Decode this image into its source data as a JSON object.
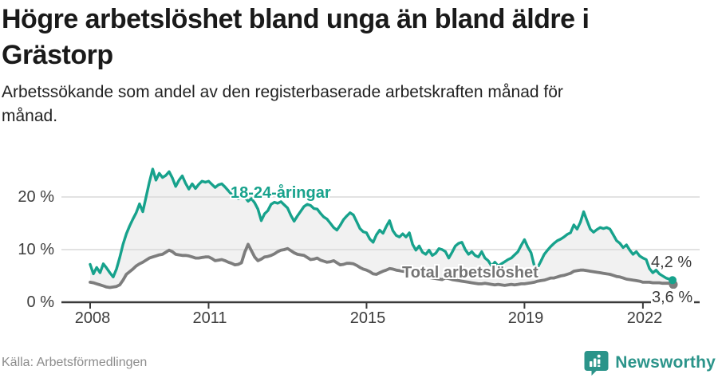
{
  "header": {
    "title_line1": "Högre arbetslöshet bland unga än bland äldre i",
    "title_line2": "Grästorp",
    "subtitle_line1": "Arbetssökande som andel av den registerbaserade arbetskraften månad för",
    "subtitle_line2": "månad."
  },
  "footer": {
    "source": "Källa: Arbetsförmedlingen",
    "brand_name": "Newsworthy"
  },
  "colors": {
    "accent_teal": "#17a28c",
    "series_gray": "#7d7d7d",
    "band_fill": "#f1f1f1",
    "gridline": "#d9d9d9",
    "axis": "#3a3a3a",
    "brand_teal": "#2b948a"
  },
  "chart_data": {
    "type": "line",
    "title": "Högre arbetslöshet bland unga än bland äldre i Grästorp",
    "subtitle": "Arbetssökande som andel av den registerbaserade arbetskraften månad för månad.",
    "xlabel": "",
    "ylabel": "",
    "x_start": "2008-01",
    "x_end": "2022-10",
    "x_frequency": "monthly",
    "ylim": [
      0,
      27
    ],
    "ytick_labels": [
      "20 %",
      "10 %",
      "0 %"
    ],
    "yticks": [
      20,
      10,
      0
    ],
    "xtick_labels": [
      "2008",
      "2011",
      "2015",
      "2019",
      "2022"
    ],
    "xtick_years": [
      2008,
      2011,
      2015,
      2019,
      2022
    ],
    "grid": "horizontal",
    "legend_position": "inline-labels",
    "end_value_labels": {
      "young": "4,2 %",
      "total": "3,6 %"
    },
    "series": [
      {
        "name": "18-24-åringar",
        "color": "#17a28c",
        "values": [
          7.2,
          5.4,
          6.6,
          5.6,
          7.3,
          6.5,
          5.6,
          4.8,
          6.3,
          8.5,
          11.0,
          13.0,
          14.5,
          15.8,
          17.0,
          18.7,
          17.2,
          20.0,
          22.8,
          25.3,
          23.2,
          24.5,
          23.7,
          24.1,
          24.8,
          23.6,
          22.0,
          23.2,
          24.0,
          22.6,
          21.5,
          22.5,
          21.6,
          22.4,
          23.0,
          22.8,
          23.0,
          22.4,
          21.8,
          22.3,
          22.5,
          21.9,
          21.2,
          20.5,
          20.3,
          19.7,
          19.9,
          20.0,
          19.2,
          19.7,
          18.9,
          17.7,
          15.5,
          16.8,
          17.4,
          18.6,
          19.0,
          18.8,
          19.1,
          18.5,
          17.9,
          16.5,
          15.4,
          16.4,
          17.3,
          18.2,
          18.6,
          18.4,
          17.8,
          17.7,
          16.9,
          16.2,
          15.8,
          15.0,
          14.2,
          13.7,
          14.6,
          15.7,
          16.4,
          17.0,
          16.6,
          15.3,
          14.0,
          13.4,
          13.2,
          12.0,
          11.4,
          12.8,
          13.7,
          13.1,
          14.4,
          15.5,
          13.6,
          12.7,
          12.4,
          13.0,
          12.4,
          13.2,
          11.0,
          9.9,
          10.7,
          9.5,
          9.1,
          9.9,
          8.9,
          9.3,
          10.2,
          10.0,
          9.6,
          8.4,
          9.5,
          10.7,
          11.2,
          11.4,
          10.0,
          9.1,
          9.6,
          8.9,
          8.6,
          9.6,
          8.4,
          7.9,
          6.9,
          7.6,
          6.9,
          7.3,
          7.7,
          8.1,
          8.4,
          9.0,
          9.6,
          10.8,
          11.9,
          10.5,
          9.4,
          6.9,
          6.6,
          7.8,
          9.1,
          9.9,
          10.6,
          11.2,
          11.7,
          12.0,
          12.4,
          12.9,
          13.2,
          14.7,
          13.9,
          15.2,
          17.2,
          15.5,
          13.9,
          13.3,
          13.8,
          14.2,
          14.0,
          14.2,
          13.9,
          12.8,
          11.7,
          11.2,
          10.4,
          10.9,
          9.9,
          9.1,
          9.6,
          8.8,
          8.4,
          8.1,
          6.4,
          5.6,
          6.1,
          5.4,
          5.0,
          4.6,
          4.4,
          4.2
        ]
      },
      {
        "name": "Total arbetslöshet",
        "color": "#7d7d7d",
        "values": [
          3.8,
          3.7,
          3.5,
          3.3,
          3.1,
          2.9,
          2.8,
          2.9,
          3.0,
          3.3,
          4.2,
          5.3,
          5.8,
          6.3,
          6.9,
          7.3,
          7.6,
          8.0,
          8.4,
          8.6,
          8.8,
          9.0,
          9.1,
          9.5,
          9.9,
          9.6,
          9.1,
          9.0,
          8.9,
          8.9,
          8.8,
          8.6,
          8.4,
          8.4,
          8.5,
          8.6,
          8.6,
          8.3,
          7.9,
          8.0,
          8.1,
          7.9,
          7.6,
          7.4,
          7.1,
          7.2,
          7.5,
          9.5,
          11.0,
          9.8,
          8.6,
          7.9,
          8.2,
          8.6,
          8.7,
          8.9,
          9.2,
          9.6,
          9.9,
          10.0,
          10.2,
          9.8,
          9.4,
          9.1,
          9.0,
          8.9,
          8.5,
          8.1,
          8.2,
          8.4,
          8.0,
          7.8,
          7.6,
          7.7,
          7.9,
          7.5,
          7.1,
          7.2,
          7.4,
          7.4,
          7.3,
          7.0,
          6.6,
          6.3,
          6.1,
          5.8,
          5.4,
          5.3,
          5.6,
          5.9,
          6.1,
          6.4,
          6.3,
          6.1,
          6.0,
          5.9,
          5.8,
          5.6,
          5.4,
          5.2,
          5.0,
          4.9,
          4.8,
          4.7,
          4.6,
          4.5,
          4.4,
          4.3,
          4.6,
          4.5,
          4.3,
          4.2,
          4.1,
          4.0,
          3.9,
          3.8,
          3.7,
          3.6,
          3.5,
          3.5,
          3.6,
          3.5,
          3.4,
          3.3,
          3.4,
          3.3,
          3.2,
          3.3,
          3.4,
          3.3,
          3.4,
          3.5,
          3.5,
          3.6,
          3.7,
          3.8,
          4.0,
          4.1,
          4.2,
          4.4,
          4.6,
          4.6,
          4.8,
          5.0,
          5.1,
          5.3,
          5.5,
          5.9,
          6.0,
          6.1,
          6.1,
          6.0,
          5.9,
          5.8,
          5.7,
          5.6,
          5.5,
          5.4,
          5.3,
          5.1,
          4.9,
          4.8,
          4.6,
          4.4,
          4.3,
          4.2,
          4.1,
          4.0,
          3.8,
          3.8,
          3.8,
          3.7,
          3.7,
          3.7,
          3.6,
          3.6,
          3.6,
          3.6
        ]
      }
    ]
  }
}
